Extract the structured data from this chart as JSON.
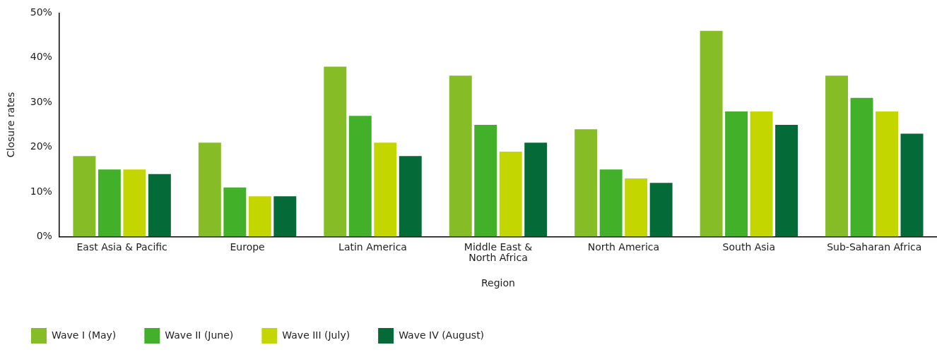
{
  "chart_data": {
    "type": "bar",
    "xlabel": "Region",
    "ylabel": "Closure rates",
    "categories": [
      "East Asia & Pacific",
      "Europe",
      "Latin America",
      "Middle East & North Africa",
      "North America",
      "South Asia",
      "Sub-Saharan Africa"
    ],
    "series": [
      {
        "name": "Wave I (May)",
        "color": "#86bc25",
        "values": [
          18,
          21,
          38,
          36,
          24,
          46,
          36
        ]
      },
      {
        "name": "Wave II (June)",
        "color": "#43b02a",
        "values": [
          15,
          11,
          27,
          25,
          15,
          28,
          31
        ]
      },
      {
        "name": "Wave III (July)",
        "color": "#c4d600",
        "values": [
          15,
          9,
          21,
          19,
          13,
          28,
          28
        ]
      },
      {
        "name": "Wave IV (August)",
        "color": "#046a38",
        "values": [
          14,
          9,
          18,
          21,
          12,
          25,
          23
        ]
      }
    ],
    "ylim": [
      0,
      50
    ],
    "yticks": [
      {
        "value": 0,
        "label": "0%"
      },
      {
        "value": 10,
        "label": "10%"
      },
      {
        "value": 20,
        "label": "20%"
      },
      {
        "value": 30,
        "label": "30%"
      },
      {
        "value": 40,
        "label": "40%"
      },
      {
        "value": 50,
        "label": "50%"
      }
    ],
    "legend": "bottom left"
  }
}
